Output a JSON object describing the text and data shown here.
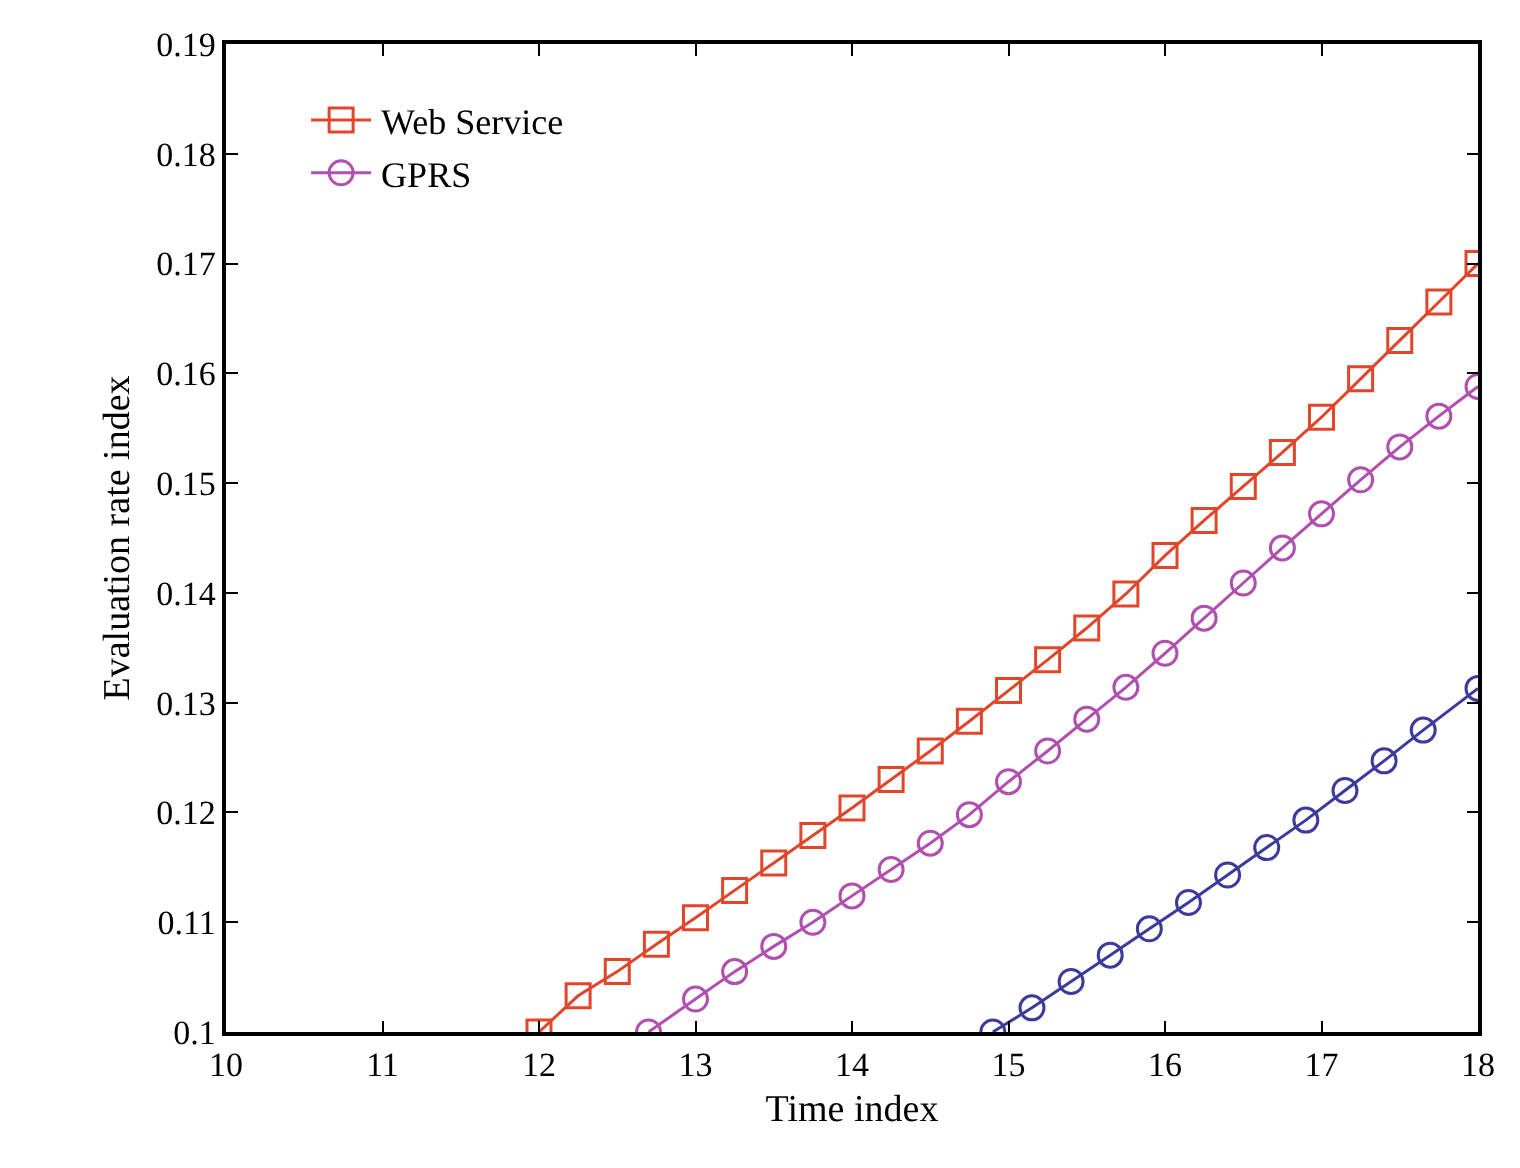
{
  "chart_data": {
    "type": "line",
    "xlabel": "Time index",
    "ylabel": "Evaluation rate index",
    "xlim": [
      10,
      18
    ],
    "xticks": [
      10,
      11,
      12,
      13,
      14,
      15,
      16,
      17,
      18
    ],
    "ylim": [
      0.1,
      0.19
    ],
    "yticks": [
      0.1,
      0.11,
      0.12,
      0.13,
      0.14,
      0.15,
      0.16,
      0.17,
      0.18,
      0.19
    ],
    "grid": false,
    "legend": "top left",
    "series": [
      {
        "name": "Web Service",
        "color": "#e0462a",
        "marker": "square",
        "x": [
          12,
          12.25,
          12.5,
          12.75,
          13,
          13.25,
          13.5,
          13.75,
          14,
          14.25,
          14.5,
          14.75,
          15,
          15.25,
          15.5,
          15.75,
          16,
          16.25,
          16.5,
          16.75,
          17,
          17.25,
          17.5,
          17.75,
          18
        ],
        "values": [
          0.1,
          0.1033,
          0.1055,
          0.108,
          0.1104,
          0.1129,
          0.1154,
          0.1179,
          0.1204,
          0.123,
          0.1256,
          0.1283,
          0.1311,
          0.1339,
          0.1368,
          0.1399,
          0.1434,
          0.1466,
          0.1497,
          0.1528,
          0.156,
          0.1595,
          0.163,
          0.1665,
          0.17
        ]
      },
      {
        "name": "GPRS",
        "color": "#b04fb0",
        "marker": "circle",
        "x": [
          12.7,
          13,
          13.25,
          13.5,
          13.75,
          14,
          14.25,
          14.5,
          14.75,
          15,
          15.25,
          15.5,
          15.75,
          16,
          16.25,
          16.5,
          16.75,
          17,
          17.25,
          17.5,
          17.75,
          18
        ],
        "values": [
          0.1,
          0.103,
          0.1055,
          0.1078,
          0.11,
          0.1124,
          0.1148,
          0.1172,
          0.1198,
          0.1228,
          0.1256,
          0.1285,
          0.1314,
          0.1345,
          0.1377,
          0.1409,
          0.1441,
          0.1472,
          0.1503,
          0.1533,
          0.1561,
          0.1588
        ]
      },
      {
        "color": "#3c3a9c",
        "marker": "circle",
        "x": [
          14.9,
          15.15,
          15.4,
          15.65,
          15.9,
          16.15,
          16.4,
          16.65,
          16.9,
          17.15,
          17.4,
          17.65,
          18
        ],
        "values": [
          0.1,
          0.1022,
          0.1046,
          0.107,
          0.1094,
          0.1118,
          0.1143,
          0.1168,
          0.1193,
          0.122,
          0.1247,
          0.1275,
          0.1313
        ]
      }
    ]
  }
}
